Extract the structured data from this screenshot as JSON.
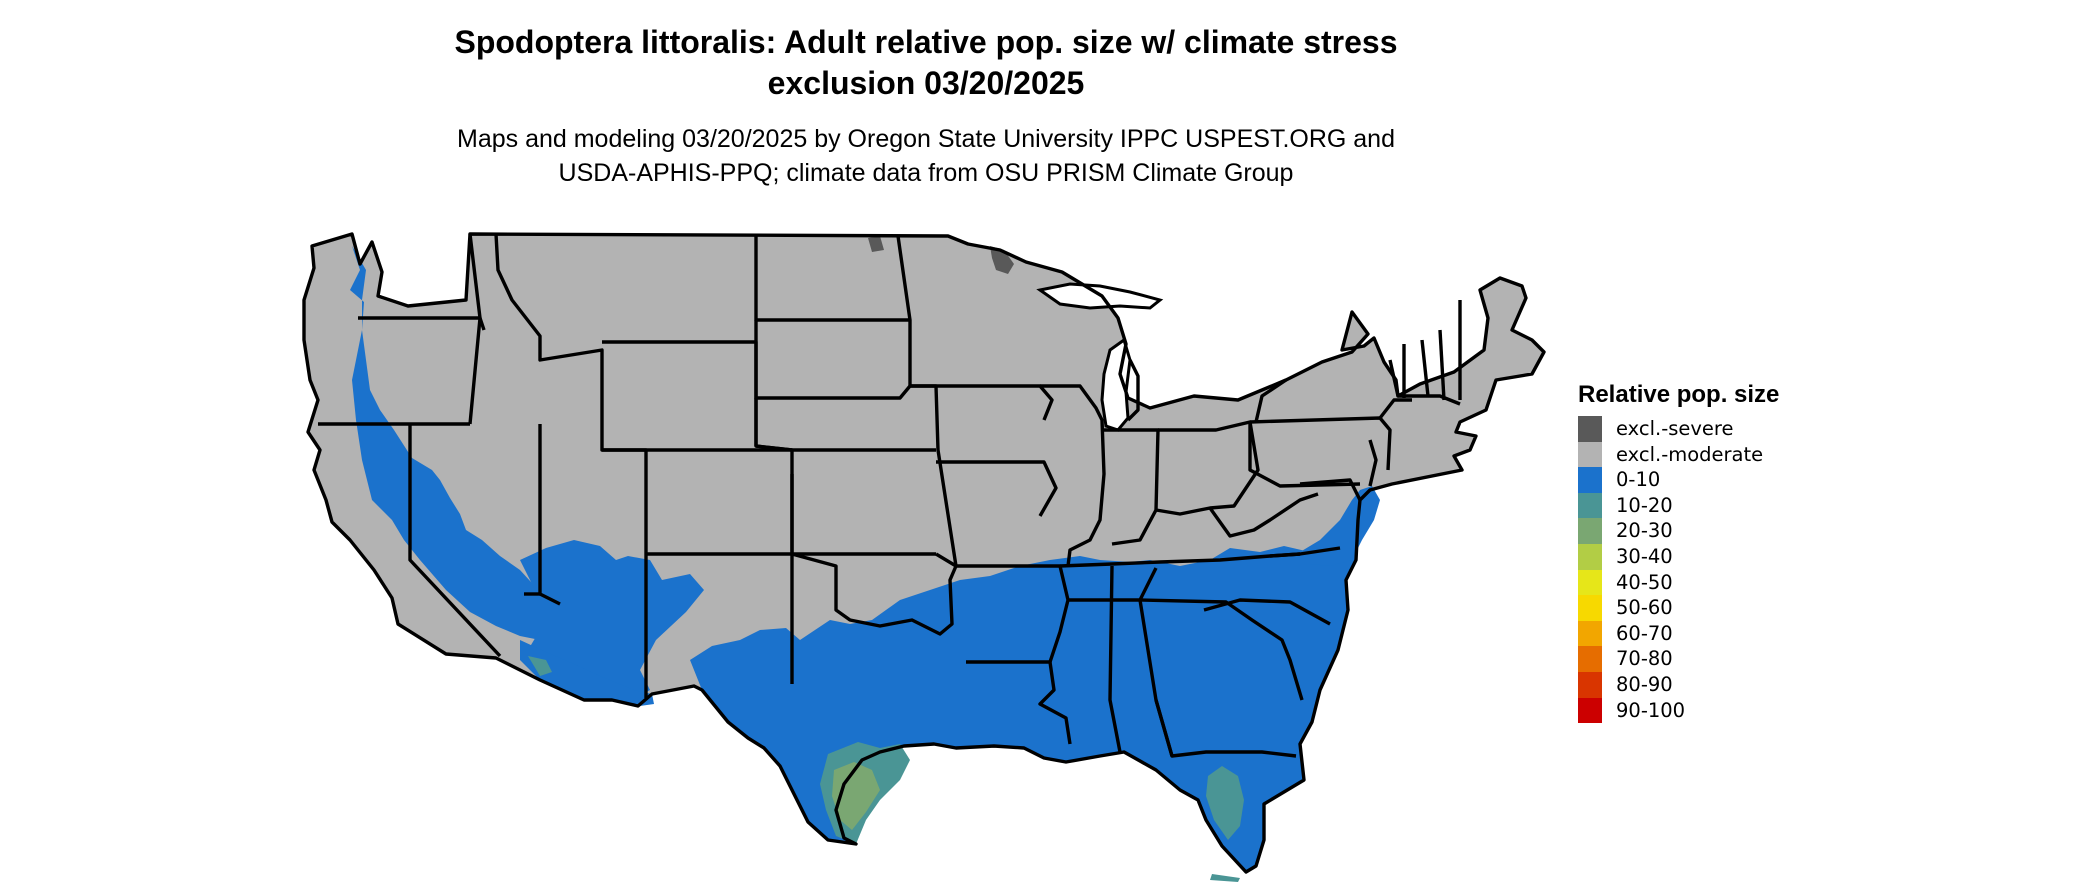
{
  "title": {
    "line1": "Spodoptera littoralis: Adult relative pop. size w/ climate stress",
    "line2": "exclusion 03/20/2025"
  },
  "subtitle": {
    "line1": "Maps and modeling 03/20/2025 by Oregon State University IPPC USPEST.ORG and",
    "line2": "USDA-APHIS-PPQ; climate data from OSU PRISM Climate Group"
  },
  "colors": {
    "excluded_moderate": "#b3b3b3",
    "excluded_severe": "#595959",
    "band_0_10": "#1b72cc",
    "band_10_20": "#4a9595",
    "band_20_30": "#7aa772",
    "border": "#000000"
  },
  "legend": {
    "title": "Relative pop. size",
    "items": [
      {
        "label": "excl.-severe",
        "color": "#595959"
      },
      {
        "label": "excl.-moderate",
        "color": "#b3b3b3"
      },
      {
        "label": "0-10",
        "color": "#1b72cc"
      },
      {
        "label": "10-20",
        "color": "#4a9595"
      },
      {
        "label": "20-30",
        "color": "#7aa772"
      },
      {
        "label": "30-40",
        "color": "#b2cd45"
      },
      {
        "label": "40-50",
        "color": "#e6e619"
      },
      {
        "label": "50-60",
        "color": "#f7d900"
      },
      {
        "label": "60-70",
        "color": "#f2a600"
      },
      {
        "label": "70-80",
        "color": "#e66d00"
      },
      {
        "label": "80-90",
        "color": "#d93500"
      },
      {
        "label": "90-100",
        "color": "#cc0000"
      }
    ]
  }
}
